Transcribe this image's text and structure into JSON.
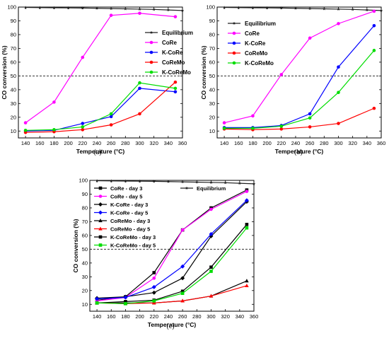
{
  "chart_data": [
    {
      "type": "line",
      "caption": "(a)",
      "xlabel": "Temperature (°C)",
      "ylabel": "CO conversion (%)",
      "xlim": [
        130,
        360
      ],
      "ylim": [
        5,
        100
      ],
      "xticks": [
        140,
        160,
        180,
        200,
        220,
        240,
        260,
        280,
        300,
        320,
        340,
        360
      ],
      "yticks": [
        10,
        20,
        30,
        40,
        50,
        60,
        70,
        80,
        90,
        100
      ],
      "reference_line_y": 50,
      "legend_position": "right",
      "series": [
        {
          "name": "Equilibrium",
          "color": "#222222",
          "marker": "star",
          "x": [
            140,
            160,
            180,
            200,
            220,
            240,
            260,
            280,
            300,
            320,
            340,
            360
          ],
          "y": [
            99.7,
            99.6,
            99.5,
            99.4,
            99.3,
            99.1,
            98.9,
            98.7,
            98.5,
            98.3,
            97.9,
            97.5
          ]
        },
        {
          "name": "CoRe",
          "color": "#ff00ff",
          "marker": "circle",
          "x": [
            140,
            180,
            220,
            260,
            300,
            350
          ],
          "y": [
            16,
            31,
            63.5,
            94,
            95.5,
            93
          ]
        },
        {
          "name": "K-CoRe",
          "color": "#0000ff",
          "marker": "circle",
          "x": [
            140,
            180,
            220,
            260,
            300,
            350
          ],
          "y": [
            10,
            10.5,
            15.5,
            20.5,
            41,
            38.5
          ]
        },
        {
          "name": "CoReMo",
          "color": "#ff0000",
          "marker": "circle",
          "x": [
            140,
            180,
            220,
            260,
            300,
            350
          ],
          "y": [
            9,
            9.5,
            11,
            14.5,
            22.5,
            45.5
          ]
        },
        {
          "name": "K-CoReMo",
          "color": "#00dd00",
          "marker": "circle",
          "x": [
            140,
            180,
            220,
            260,
            300,
            350
          ],
          "y": [
            10.5,
            11,
            13,
            22.5,
            45,
            41
          ]
        }
      ]
    },
    {
      "type": "line",
      "caption": "(b)",
      "xlabel": "Temperature (°C)",
      "ylabel": "CO conversion (%)",
      "xlim": [
        130,
        360
      ],
      "ylim": [
        5,
        100
      ],
      "xticks": [
        140,
        160,
        180,
        200,
        220,
        240,
        260,
        280,
        300,
        320,
        340,
        360
      ],
      "yticks": [
        10,
        20,
        30,
        40,
        50,
        60,
        70,
        80,
        90,
        100
      ],
      "reference_line_y": 50,
      "legend_position": "top-left",
      "series": [
        {
          "name": "Equilibrium",
          "color": "#222222",
          "marker": "star",
          "x": [
            140,
            160,
            180,
            200,
            220,
            240,
            260,
            280,
            300,
            320,
            340,
            360
          ],
          "y": [
            99.7,
            99.6,
            99.5,
            99.4,
            99.3,
            99.1,
            98.9,
            98.7,
            98.5,
            98.3,
            97.9,
            97.5
          ]
        },
        {
          "name": "CoRe",
          "color": "#ff00ff",
          "marker": "circle",
          "x": [
            140,
            180,
            220,
            260,
            300,
            350
          ],
          "y": [
            16,
            21,
            51,
            77.5,
            88,
            97
          ]
        },
        {
          "name": "K-CoRe",
          "color": "#0000ff",
          "marker": "circle",
          "x": [
            140,
            180,
            220,
            260,
            300,
            350
          ],
          "y": [
            12.5,
            12.5,
            14,
            22.5,
            56.5,
            86.5
          ]
        },
        {
          "name": "CoReMo",
          "color": "#ff0000",
          "marker": "circle",
          "x": [
            140,
            180,
            220,
            260,
            300,
            350
          ],
          "y": [
            11.5,
            11,
            11.5,
            13,
            15.5,
            26.5
          ]
        },
        {
          "name": "K-CoReMo",
          "color": "#00dd00",
          "marker": "circle",
          "x": [
            140,
            180,
            220,
            260,
            300,
            350
          ],
          "y": [
            12,
            12,
            13.5,
            19.5,
            38,
            68.5
          ]
        }
      ]
    },
    {
      "type": "line",
      "caption": "(c)",
      "xlabel": "Temperature (°C)",
      "ylabel": "CO conversion (%)",
      "xlim": [
        130,
        360
      ],
      "ylim": [
        5,
        100
      ],
      "xticks": [
        140,
        160,
        180,
        200,
        220,
        240,
        260,
        280,
        300,
        320,
        340,
        360
      ],
      "yticks": [
        10,
        20,
        30,
        40,
        50,
        60,
        70,
        80,
        90,
        100
      ],
      "reference_line_y": 50,
      "legend_position": "top-left",
      "series": [
        {
          "name": "CoRe - day 3",
          "color": "#000000",
          "marker": "square",
          "x": [
            140,
            180,
            220,
            260,
            300,
            350
          ],
          "y": [
            13,
            15.5,
            33,
            64,
            80,
            93
          ]
        },
        {
          "name": "CoRe - day 5",
          "color": "#ff00ff",
          "marker": "circle",
          "x": [
            140,
            180,
            220,
            260,
            300,
            350
          ],
          "y": [
            12.5,
            15,
            29,
            64,
            79,
            92
          ]
        },
        {
          "name": "K-CoRe - day 3",
          "color": "#000000",
          "marker": "diamond",
          "x": [
            140,
            180,
            220,
            260,
            300,
            350
          ],
          "y": [
            14.5,
            15.5,
            18.5,
            29,
            59.5,
            84.5
          ]
        },
        {
          "name": "K-CoRe - day 5",
          "color": "#0000ff",
          "marker": "diamond",
          "x": [
            140,
            180,
            220,
            260,
            300,
            350
          ],
          "y": [
            14,
            15,
            22.5,
            37.5,
            61,
            85.5
          ]
        },
        {
          "name": "CoReMo - day 3",
          "color": "#000000",
          "marker": "triangle",
          "x": [
            140,
            180,
            220,
            260,
            300,
            350
          ],
          "y": [
            11,
            11,
            11,
            12.5,
            16,
            27
          ]
        },
        {
          "name": "CoReMo - day 5",
          "color": "#ff0000",
          "marker": "triangle",
          "x": [
            140,
            180,
            220,
            260,
            300,
            350
          ],
          "y": [
            11,
            10.5,
            11,
            12.5,
            16,
            23.5
          ]
        },
        {
          "name": "K-CoReMo - day 3",
          "color": "#000000",
          "marker": "square",
          "x": [
            140,
            180,
            220,
            260,
            300,
            350
          ],
          "y": [
            11,
            12,
            13,
            19.5,
            37,
            68
          ]
        },
        {
          "name": "K-CoReMo - day 5",
          "color": "#00dd00",
          "marker": "square",
          "x": [
            140,
            180,
            220,
            260,
            300,
            350
          ],
          "y": [
            11,
            10.5,
            12.5,
            18,
            34,
            65.5
          ]
        },
        {
          "name": "Equilibrium",
          "color": "#222222",
          "marker": "star",
          "x": [
            140,
            160,
            180,
            200,
            220,
            240,
            260,
            280,
            300,
            320,
            340,
            360
          ],
          "y": [
            99.7,
            99.6,
            99.5,
            99.4,
            99.3,
            99.1,
            98.9,
            98.7,
            98.5,
            98.3,
            97.9,
            97.5
          ]
        }
      ]
    }
  ]
}
